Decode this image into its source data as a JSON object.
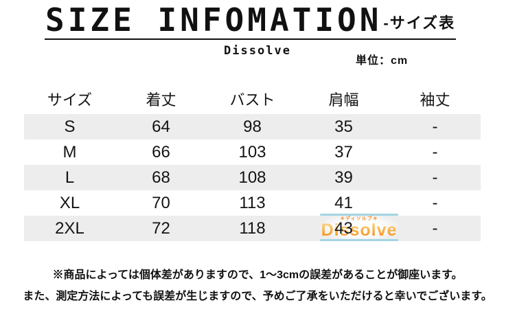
{
  "header": {
    "title": "SIZE INFOMATION",
    "title_suffix": "-サイズ表",
    "brand": "Dissolve",
    "unit_label": "単位：cm"
  },
  "chart_data": {
    "type": "table",
    "title": "SIZE INFOMATION -サイズ表",
    "unit": "cm",
    "columns": [
      "サイズ",
      "着丈",
      "バスト",
      "肩幅",
      "袖丈"
    ],
    "rows": [
      [
        "S",
        "64",
        "98",
        "35",
        "-"
      ],
      [
        "M",
        "66",
        "103",
        "37",
        "-"
      ],
      [
        "L",
        "68",
        "108",
        "39",
        "-"
      ],
      [
        "XL",
        "70",
        "113",
        "41",
        "-"
      ],
      [
        "2XL",
        "72",
        "118",
        "43",
        "-"
      ]
    ],
    "layout": {
      "striped_rows": [
        "S",
        "L",
        "2XL"
      ],
      "stripe_color": "#ededed"
    }
  },
  "watermark": {
    "text": "Dissolve",
    "subtext": "＊ディソルブ＊",
    "bar_color": "#a3d5e2",
    "text_color": "#f5a230"
  },
  "footer": {
    "line1": "※商品によっては個体差がありますので、1〜3cmの誤差があることが御座います。",
    "line2": "また、測定方法によっても誤差が生じますので、予めご了承をいただけると幸いでございます。"
  }
}
